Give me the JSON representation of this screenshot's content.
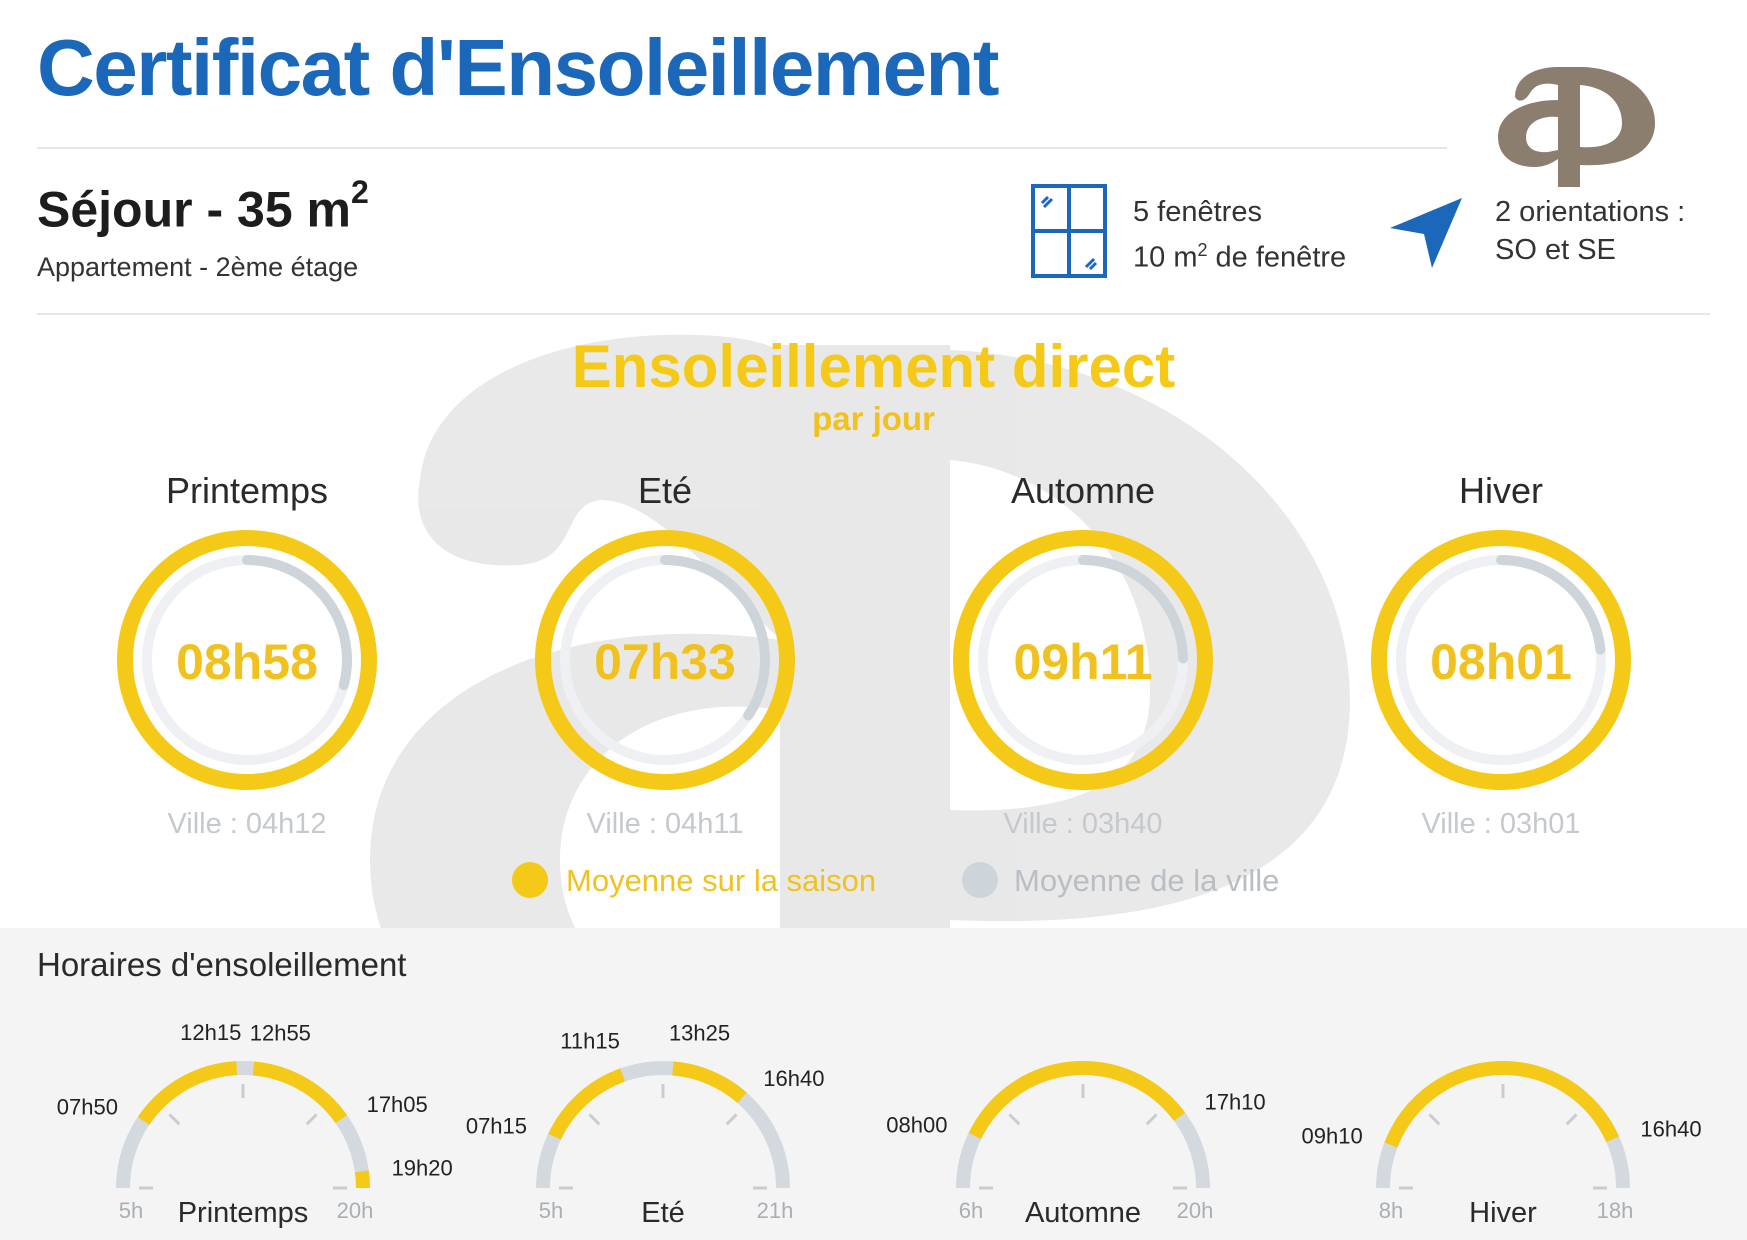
{
  "header": {
    "title": "Certificat d'Ensoleillement",
    "logo_text": "ap"
  },
  "room": {
    "title": "Séjour - 35 m",
    "title_sup": "2",
    "subtitle": "Appartement - 2ème étage"
  },
  "windows": {
    "line1": "5 fenêtres",
    "line2_prefix": "10 m",
    "line2_sup": "2",
    "line2_suffix": " de fenêtre",
    "icon": "window-icon"
  },
  "orientation": {
    "line1": "2 orientations :",
    "line2": "SO et SE",
    "icon": "navigation-arrow-icon"
  },
  "direct": {
    "title": "Ensoleillement direct",
    "subtitle": "par jour"
  },
  "seasons": [
    {
      "name": "Printemps",
      "value": "08h58",
      "ville": "Ville : 04h12"
    },
    {
      "name": "Eté",
      "value": "07h33",
      "ville": "Ville : 04h11"
    },
    {
      "name": "Automne",
      "value": "09h11",
      "ville": "Ville : 03h40"
    },
    {
      "name": "Hiver",
      "value": "08h01",
      "ville": "Ville : 03h01"
    }
  ],
  "legend": {
    "season": "Moyenne sur la saison",
    "city": "Moyenne de la ville"
  },
  "horaires": {
    "title": "Horaires d'ensoleillement",
    "gauges": [
      {
        "name": "Printemps",
        "start": "5h",
        "end": "20h",
        "start_h": 5,
        "end_h": 20,
        "sun": [
          [
            7.833,
            12.25
          ],
          [
            12.917,
            17.083
          ],
          [
            19.333,
            20
          ]
        ],
        "labels": [
          {
            "text": "07h50",
            "h": 7.833,
            "side": "left"
          },
          {
            "text": "12h15",
            "h": 12.25,
            "side": "topleft"
          },
          {
            "text": "12h55",
            "h": 12.917,
            "side": "topright"
          },
          {
            "text": "17h05",
            "h": 17.083,
            "side": "right"
          },
          {
            "text": "19h20",
            "h": 19.333,
            "side": "right"
          }
        ]
      },
      {
        "name": "Eté",
        "start": "5h",
        "end": "21h",
        "start_h": 5,
        "end_h": 21,
        "sun": [
          [
            7.25,
            11.25
          ],
          [
            13.417,
            16.667
          ]
        ],
        "labels": [
          {
            "text": "07h15",
            "h": 7.25,
            "side": "left"
          },
          {
            "text": "11h15",
            "h": 11.25,
            "side": "topleft"
          },
          {
            "text": "13h25",
            "h": 13.417,
            "side": "topright"
          },
          {
            "text": "16h40",
            "h": 16.667,
            "side": "right"
          }
        ]
      },
      {
        "name": "Automne",
        "start": "6h",
        "end": "20h",
        "start_h": 6,
        "end_h": 20,
        "sun": [
          [
            8.0,
            17.167
          ]
        ],
        "labels": [
          {
            "text": "08h00",
            "h": 8.0,
            "side": "left"
          },
          {
            "text": "17h10",
            "h": 17.167,
            "side": "right"
          }
        ]
      },
      {
        "name": "Hiver",
        "start": "8h",
        "end": "18h",
        "start_h": 8,
        "end_h": 18,
        "sun": [
          [
            9.167,
            16.667
          ]
        ],
        "labels": [
          {
            "text": "09h10",
            "h": 9.167,
            "side": "left"
          },
          {
            "text": "16h40",
            "h": 16.667,
            "side": "right"
          }
        ]
      }
    ]
  },
  "colors": {
    "title_blue": "#1b67b9",
    "sun_yellow": "#f5c917",
    "city_grey": "#cdd4da",
    "logo_brown": "#8b7e6f"
  }
}
